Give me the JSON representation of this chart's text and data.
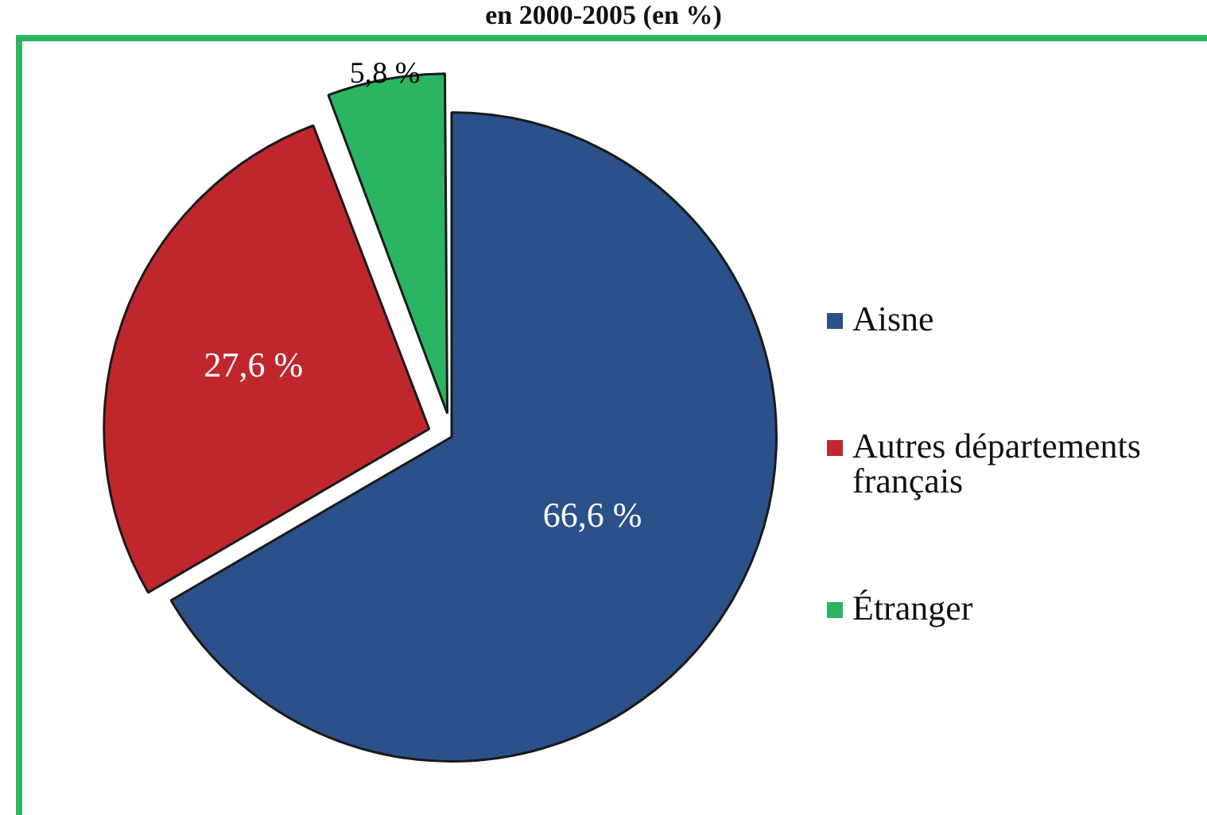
{
  "chart_data": {
    "type": "pie",
    "title": "en 2000-2005 (en %)",
    "categories": [
      "Aisne",
      "Autres départements français",
      "Étranger"
    ],
    "values": [
      66.6,
      27.6,
      5.8
    ],
    "colors": [
      "#2a5189",
      "#c0272d",
      "#2bb462"
    ],
    "value_labels": [
      "66,6 %",
      "27,6 %",
      "5,8 %"
    ],
    "legend": "right"
  }
}
